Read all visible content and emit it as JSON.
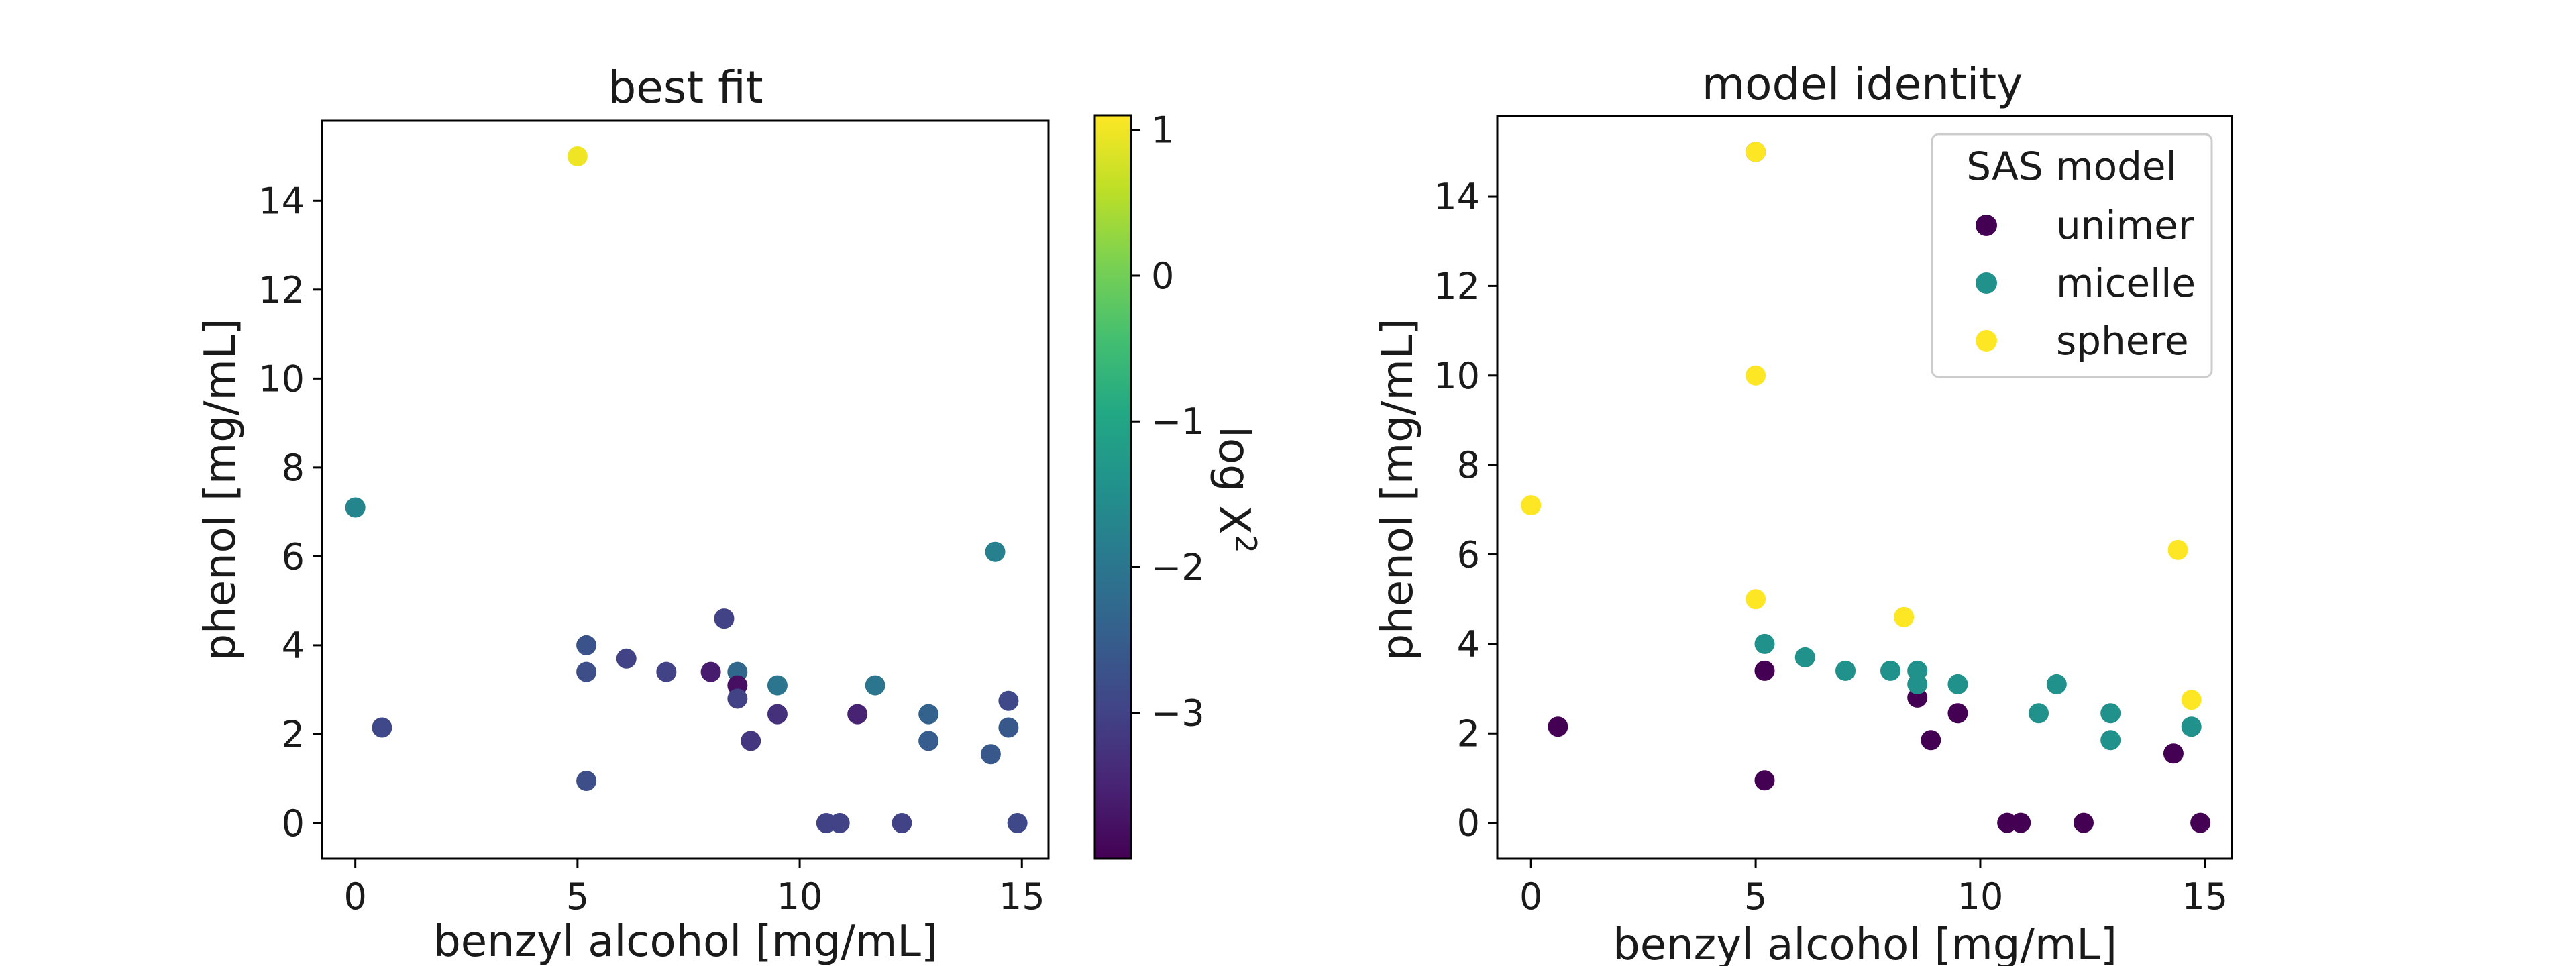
{
  "chart_data": [
    {
      "type": "scatter",
      "title": "best fit",
      "xlabel": "benzyl alcohol [mg/mL]",
      "ylabel": "phenol [mg/mL]",
      "xlim": [
        -0.75,
        15.6
      ],
      "ylim": [
        -0.8,
        15.8
      ],
      "xticks": [
        "0",
        "5",
        "10",
        "15"
      ],
      "yticks": [
        "0",
        "2",
        "4",
        "6",
        "8",
        "10",
        "12",
        "14"
      ],
      "color_by": "log X²",
      "colorbar": {
        "label": "log X",
        "label_superscript": "2",
        "range": [
          -4.0,
          1.1
        ],
        "ticks": [
          "1",
          "0",
          "−1",
          "−2",
          "−3"
        ],
        "colormap": "viridis"
      },
      "points": [
        {
          "x": 5.0,
          "y": 15.0,
          "c": 1.0
        },
        {
          "x": 0.0,
          "y": 7.1,
          "c": -1.7
        },
        {
          "x": 14.4,
          "y": 6.1,
          "c": -1.8
        },
        {
          "x": 0.6,
          "y": 2.15,
          "c": -2.9
        },
        {
          "x": 5.2,
          "y": 4.0,
          "c": -2.7
        },
        {
          "x": 5.2,
          "y": 3.4,
          "c": -2.8
        },
        {
          "x": 5.2,
          "y": 0.95,
          "c": -2.8
        },
        {
          "x": 6.1,
          "y": 3.7,
          "c": -3.0
        },
        {
          "x": 7.0,
          "y": 3.4,
          "c": -3.0
        },
        {
          "x": 8.0,
          "y": 3.4,
          "c": -3.6
        },
        {
          "x": 8.3,
          "y": 4.6,
          "c": -3.0
        },
        {
          "x": 8.6,
          "y": 3.4,
          "c": -2.3
        },
        {
          "x": 8.6,
          "y": 3.1,
          "c": -3.8
        },
        {
          "x": 8.6,
          "y": 2.8,
          "c": -3.0
        },
        {
          "x": 8.9,
          "y": 1.85,
          "c": -3.2
        },
        {
          "x": 9.5,
          "y": 3.1,
          "c": -2.0
        },
        {
          "x": 9.5,
          "y": 2.45,
          "c": -3.3
        },
        {
          "x": 10.6,
          "y": 0.0,
          "c": -3.0
        },
        {
          "x": 10.9,
          "y": 0.0,
          "c": -3.0
        },
        {
          "x": 11.3,
          "y": 2.45,
          "c": -3.5
        },
        {
          "x": 11.7,
          "y": 3.1,
          "c": -2.0
        },
        {
          "x": 12.3,
          "y": 0.0,
          "c": -3.0
        },
        {
          "x": 12.9,
          "y": 2.45,
          "c": -2.4
        },
        {
          "x": 12.9,
          "y": 1.85,
          "c": -2.5
        },
        {
          "x": 14.3,
          "y": 1.55,
          "c": -2.6
        },
        {
          "x": 14.7,
          "y": 2.75,
          "c": -2.9
        },
        {
          "x": 14.7,
          "y": 2.15,
          "c": -2.6
        },
        {
          "x": 14.9,
          "y": 0.0,
          "c": -2.9
        }
      ]
    },
    {
      "type": "scatter",
      "title": "model identity",
      "xlabel": "benzyl alcohol [mg/mL]",
      "ylabel": "phenol [mg/mL]",
      "xlim": [
        -0.75,
        15.6
      ],
      "ylim": [
        -0.8,
        15.8
      ],
      "xticks": [
        "0",
        "5",
        "10",
        "15"
      ],
      "yticks": [
        "0",
        "2",
        "4",
        "6",
        "8",
        "10",
        "12",
        "14"
      ],
      "legend": {
        "title": "SAS model",
        "position": "top-right"
      },
      "series": [
        {
          "name": "unimer",
          "color": "#440154",
          "x": [
            5.0,
            0.6,
            5.2,
            5.2,
            8.6,
            8.9,
            9.5,
            10.6,
            10.9,
            12.3,
            14.3,
            14.9
          ],
          "y": [
            15.0,
            2.15,
            3.4,
            0.95,
            2.8,
            1.85,
            2.45,
            0.0,
            0.0,
            0.0,
            1.55,
            0.0
          ]
        },
        {
          "name": "micelle",
          "color": "#21918c",
          "x": [
            5.2,
            6.1,
            7.0,
            8.0,
            8.6,
            8.6,
            9.5,
            11.3,
            11.7,
            12.9,
            12.9,
            14.7
          ],
          "y": [
            4.0,
            3.7,
            3.4,
            3.4,
            3.4,
            3.1,
            3.1,
            2.45,
            3.1,
            2.45,
            1.85,
            2.15
          ]
        },
        {
          "name": "sphere",
          "color": "#fde725",
          "x": [
            5.0,
            0.0,
            5.0,
            5.0,
            8.3,
            14.4,
            14.7
          ],
          "y": [
            10.0,
            7.1,
            5.0,
            15.0,
            4.6,
            6.1,
            2.75
          ]
        }
      ]
    }
  ]
}
